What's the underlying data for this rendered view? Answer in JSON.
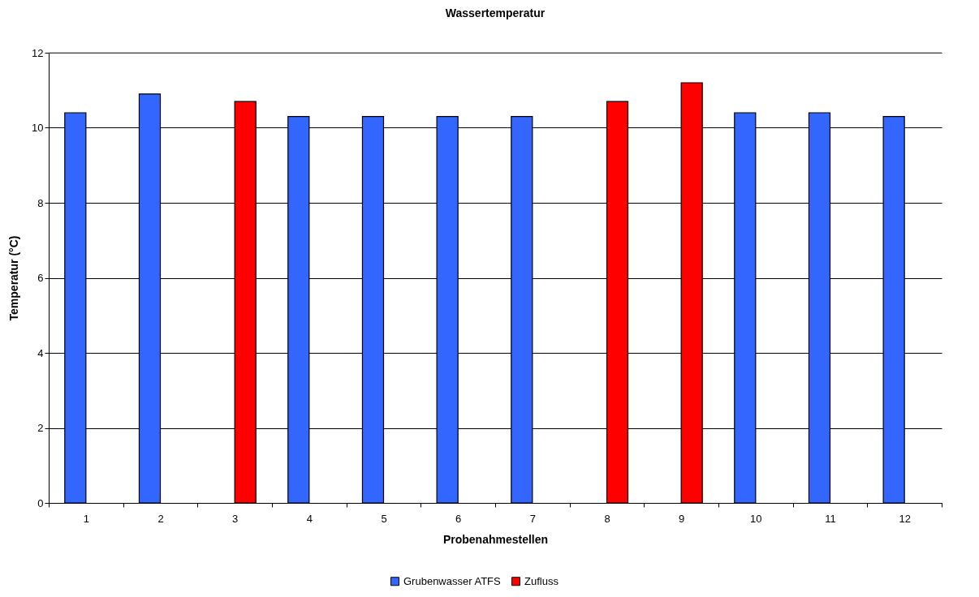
{
  "chart_data": {
    "type": "bar",
    "title": "Wassertemperatur",
    "xlabel": "Probenahmestellen",
    "ylabel": "Temperatur (°C)",
    "categories": [
      "1",
      "2",
      "3",
      "4",
      "5",
      "6",
      "7",
      "8",
      "9",
      "10",
      "11",
      "12"
    ],
    "series": [
      {
        "name": "Grubenwasser ATFS",
        "color": "#3366ff",
        "values": [
          10.4,
          10.9,
          null,
          10.3,
          10.3,
          10.3,
          10.3,
          null,
          null,
          10.4,
          10.4,
          10.3
        ]
      },
      {
        "name": "Zufluss",
        "color": "#ff0000",
        "values": [
          null,
          null,
          10.7,
          null,
          null,
          null,
          null,
          10.7,
          11.2,
          null,
          null,
          null
        ]
      }
    ],
    "ylim": [
      0,
      12
    ],
    "yticks": [
      0,
      2,
      4,
      6,
      8,
      10,
      12
    ],
    "grid": "y",
    "legend": "bottom"
  }
}
